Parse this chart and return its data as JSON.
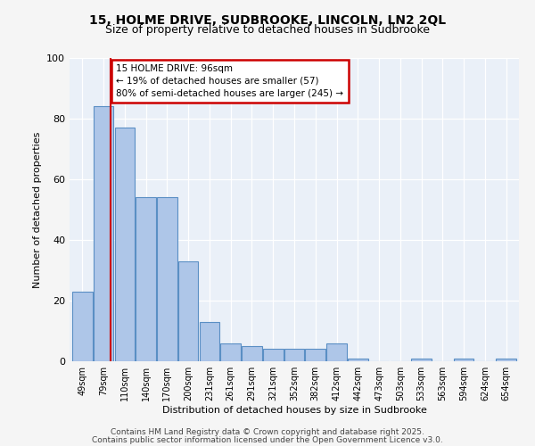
{
  "title1": "15, HOLME DRIVE, SUDBROOKE, LINCOLN, LN2 2QL",
  "title2": "Size of property relative to detached houses in Sudbrooke",
  "xlabel": "Distribution of detached houses by size in Sudbrooke",
  "ylabel": "Number of detached properties",
  "categories": [
    "49sqm",
    "79sqm",
    "110sqm",
    "140sqm",
    "170sqm",
    "200sqm",
    "231sqm",
    "261sqm",
    "291sqm",
    "321sqm",
    "352sqm",
    "382sqm",
    "412sqm",
    "442sqm",
    "473sqm",
    "503sqm",
    "533sqm",
    "563sqm",
    "594sqm",
    "624sqm",
    "654sqm"
  ],
  "values": [
    23,
    84,
    77,
    54,
    54,
    33,
    13,
    6,
    5,
    4,
    4,
    4,
    6,
    1,
    0,
    0,
    1,
    0,
    1,
    0,
    1
  ],
  "bar_color": "#aec6e8",
  "bar_edge_color": "#5a8fc4",
  "red_line_x": 1.35,
  "annotation_text": "15 HOLME DRIVE: 96sqm\n← 19% of detached houses are smaller (57)\n80% of semi-detached houses are larger (245) →",
  "annotation_box_color": "#ffffff",
  "annotation_box_edge": "#cc0000",
  "footer1": "Contains HM Land Registry data © Crown copyright and database right 2025.",
  "footer2": "Contains public sector information licensed under the Open Government Licence v3.0.",
  "bg_color": "#eaf0f8",
  "fig_bg_color": "#f5f5f5",
  "ylim": [
    0,
    100
  ],
  "yticks": [
    0,
    20,
    40,
    60,
    80,
    100
  ]
}
